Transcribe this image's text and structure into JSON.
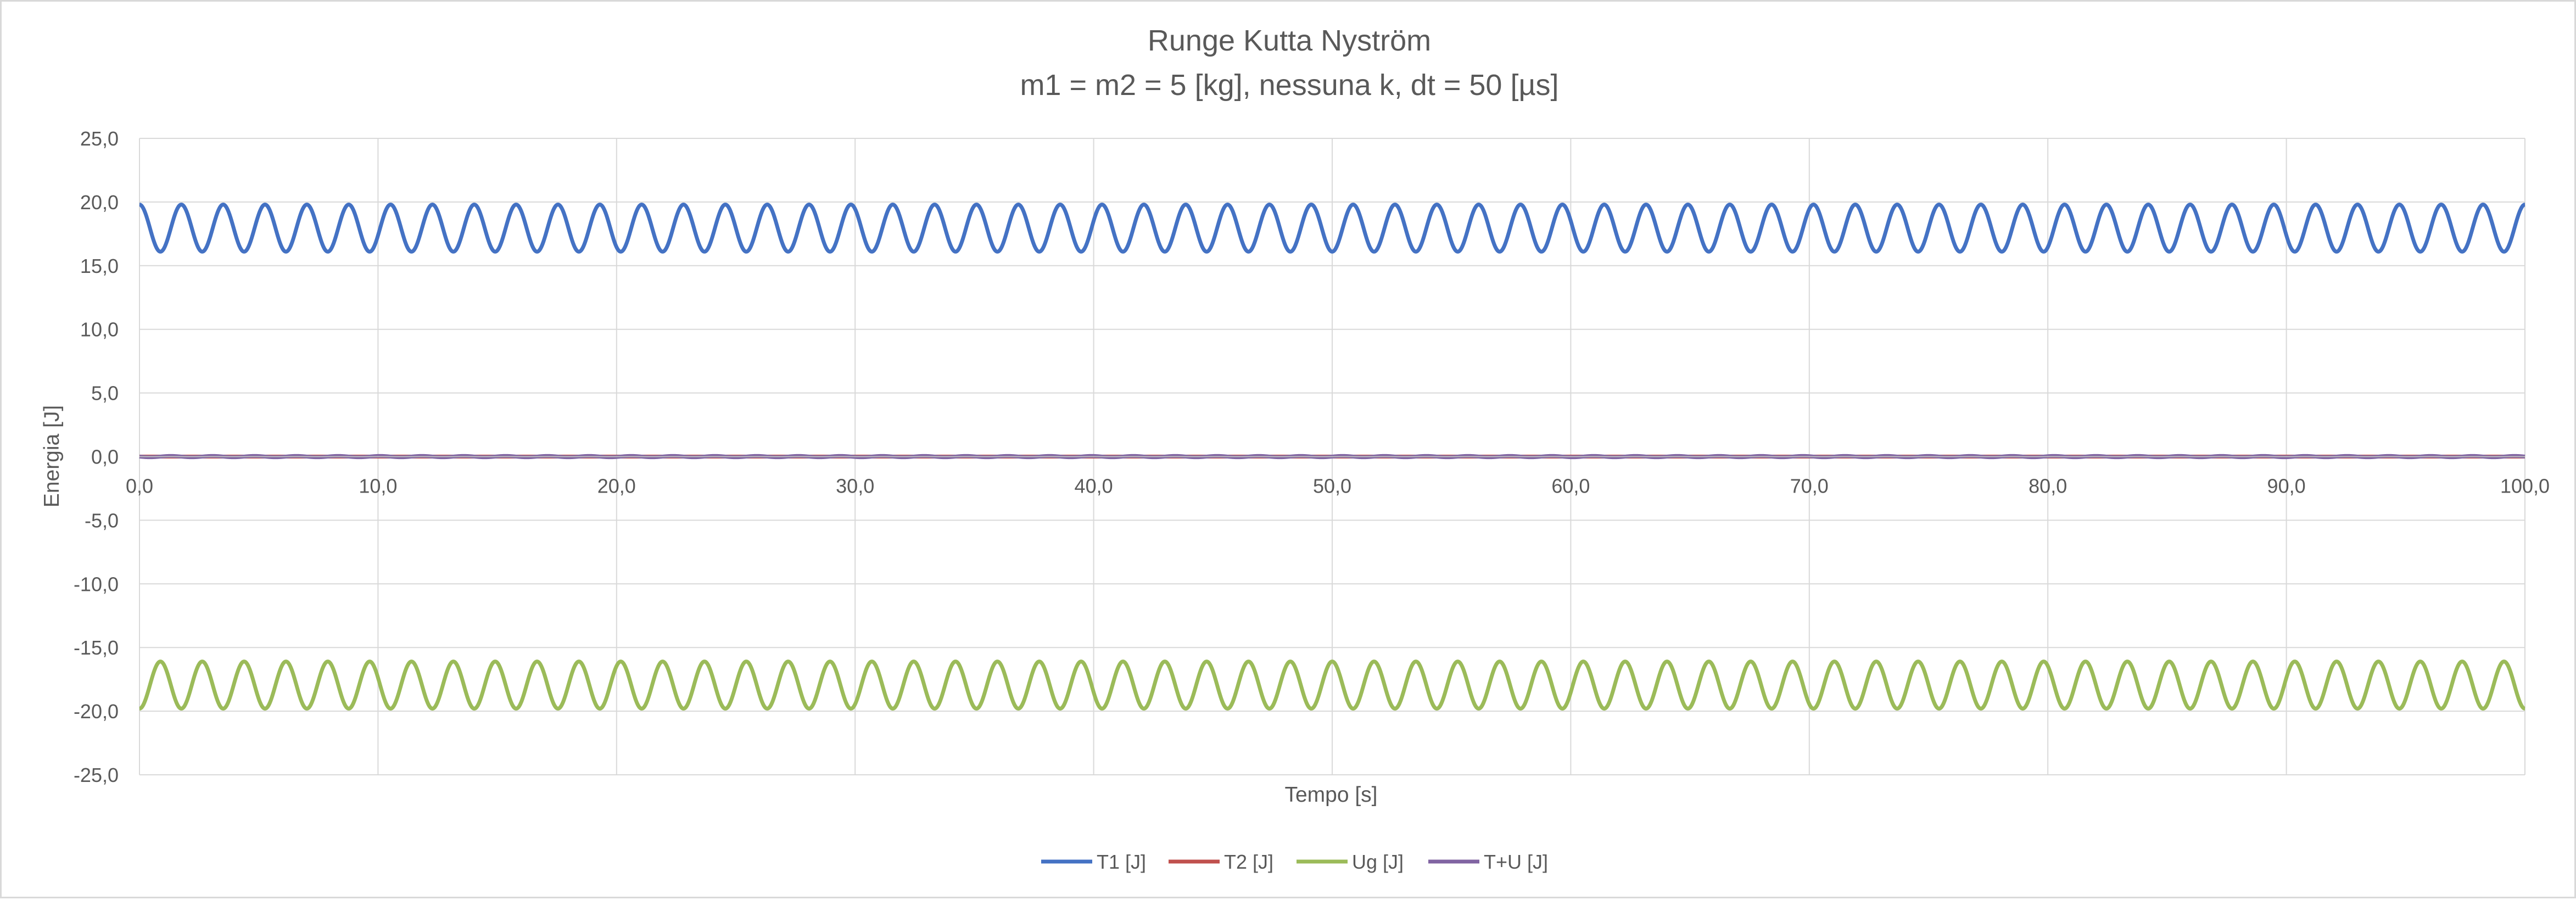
{
  "chart_data": {
    "type": "line",
    "title": "Runge Kutta Nyström",
    "subtitle": "m1 = m2 = 5 [kg], nessuna k, dt = 50 [µs]",
    "xlabel": "Tempo [s]",
    "ylabel": "Energia [J]",
    "xlim": [
      0,
      100
    ],
    "ylim": [
      -25,
      25
    ],
    "x_ticks": [
      0,
      10,
      20,
      30,
      40,
      50,
      60,
      70,
      80,
      90,
      100
    ],
    "x_tick_labels": [
      "0,0",
      "10,0",
      "20,0",
      "30,0",
      "40,0",
      "50,0",
      "60,0",
      "70,0",
      "80,0",
      "90,0",
      "100,0"
    ],
    "y_ticks": [
      25,
      20,
      15,
      10,
      5,
      0,
      -5,
      -10,
      -15,
      -20,
      -25
    ],
    "y_tick_labels": [
      "25,0",
      "20,0",
      "15,0",
      "10,0",
      "5,0",
      "0,0",
      "-5,0",
      "-10,0",
      "-15,0",
      "-20,0",
      "-25,0"
    ],
    "grid": true,
    "legend_position": "bottom",
    "series": [
      {
        "name": "T1 [J]",
        "color": "#4472c4",
        "shape": "oscillation",
        "min": 16.1,
        "max": 19.8,
        "cycles": 57,
        "start": 19.8,
        "end": 16.6
      },
      {
        "name": "T2 [J]",
        "color": "#c0504d",
        "shape": "oscillation",
        "min": 0.0,
        "max": 0.0,
        "cycles": 57,
        "start": 0.0,
        "end": 0.0
      },
      {
        "name": "Ug [J]",
        "color": "#9bbb59",
        "shape": "oscillation",
        "min": -19.8,
        "max": -16.1,
        "cycles": 57,
        "start": -19.8,
        "end": -16.6
      },
      {
        "name": "T+U [J]",
        "color": "#8064a2",
        "shape": "oscillation",
        "min": -0.05,
        "max": 0.05,
        "cycles": 57,
        "start": 0.0,
        "end": 0.0
      }
    ]
  }
}
